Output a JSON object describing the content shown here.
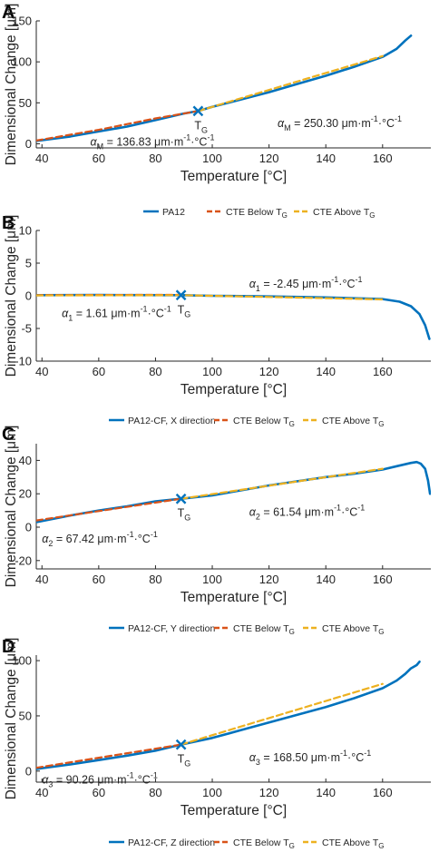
{
  "colors": {
    "measured": "#0072bd",
    "below": "#d95319",
    "above": "#edb120",
    "axis": "#262626"
  },
  "chart_data": [
    {
      "panel": "A",
      "type": "line",
      "xlabel": "Temperature [°C]",
      "ylabel": "Dimensional Change [μm]",
      "xlim": [
        38,
        177
      ],
      "ylim": [
        -5,
        150
      ],
      "xticks": [
        40,
        60,
        80,
        100,
        120,
        140,
        160
      ],
      "yticks": [
        0,
        50,
        100,
        150
      ],
      "series": [
        {
          "name": "PA12",
          "style": "solid",
          "color": "#0072bd",
          "points": [
            [
              38,
              3.5
            ],
            [
              50,
              9
            ],
            [
              60,
              15
            ],
            [
              70,
              21
            ],
            [
              80,
              29
            ],
            [
              90,
              37
            ],
            [
              95,
              40
            ],
            [
              100,
              45
            ],
            [
              110,
              54
            ],
            [
              120,
              63
            ],
            [
              130,
              73
            ],
            [
              140,
              83
            ],
            [
              150,
              94
            ],
            [
              160,
              106
            ],
            [
              165,
              116
            ],
            [
              168,
              126
            ],
            [
              170,
              132
            ]
          ]
        },
        {
          "name": "CTE Below TG",
          "style": "dashed",
          "color": "#d95319",
          "points": [
            [
              38,
              4
            ],
            [
              60,
              17
            ],
            [
              80,
              31
            ],
            [
              95,
              40
            ]
          ]
        },
        {
          "name": "CTE Above TG",
          "style": "dashed",
          "color": "#edb120",
          "points": [
            [
              95,
              40
            ],
            [
              160,
              107
            ]
          ]
        }
      ],
      "marker": {
        "x": 95,
        "y": 40,
        "label": "T",
        "sub": "G"
      },
      "annotations": [
        {
          "sym": "α",
          "sub": "M",
          "text": " = 250.30 μm·m",
          "sup": "-1",
          "text2": "·°C",
          "sup2": "-1",
          "x": 123,
          "y": 25
        },
        {
          "sym": "α",
          "sub": "M",
          "text": " = 136.83 μm·m",
          "sup": "-1",
          "text2": "·°C",
          "sup2": "-1",
          "x": 57,
          "y": 2
        }
      ],
      "legend": [
        {
          "label": "PA12",
          "sub": "",
          "style": "solid",
          "color": "#0072bd"
        },
        {
          "label": "CTE Below T",
          "sub": "G",
          "style": "dashed",
          "color": "#d95319"
        },
        {
          "label": "CTE Above T",
          "sub": "G",
          "style": "dashed",
          "color": "#edb120"
        }
      ]
    },
    {
      "panel": "B",
      "type": "line",
      "xlabel": "Temperature [°C]",
      "ylabel": "Dimensional Change [μm]",
      "xlim": [
        38,
        177
      ],
      "ylim": [
        -10,
        10
      ],
      "xticks": [
        40,
        60,
        80,
        100,
        120,
        140,
        160
      ],
      "yticks": [
        -10,
        -5,
        0,
        5,
        10
      ],
      "series": [
        {
          "name": "PA12-CF, X direction",
          "style": "solid",
          "color": "#0072bd",
          "points": [
            [
              38,
              0.1
            ],
            [
              60,
              0.12
            ],
            [
              89,
              0.1
            ],
            [
              100,
              0
            ],
            [
              120,
              -0.1
            ],
            [
              140,
              -0.25
            ],
            [
              160,
              -0.5
            ],
            [
              166,
              -0.9
            ],
            [
              170,
              -1.6
            ],
            [
              173,
              -2.8
            ],
            [
              175,
              -4.5
            ],
            [
              176.5,
              -6.6
            ]
          ]
        },
        {
          "name": "CTE Below TG",
          "style": "dashed",
          "color": "#d95319",
          "points": [
            [
              38,
              0.1
            ],
            [
              89,
              0.15
            ]
          ]
        },
        {
          "name": "CTE Above TG",
          "style": "dashed",
          "color": "#edb120",
          "points": [
            [
              38,
              0.05
            ],
            [
              89,
              0.1
            ],
            [
              160,
              -0.55
            ]
          ]
        }
      ],
      "marker": {
        "x": 89,
        "y": 0.1,
        "label": "T",
        "sub": "G"
      },
      "annotations": [
        {
          "sym": "α",
          "sub": "1",
          "text": " = -2.45 μm·m",
          "sup": "-1",
          "text2": "·°C",
          "sup2": "-1",
          "x": 113,
          "y": 1.8
        },
        {
          "sym": "α",
          "sub": "1",
          "text": " = 1.61 μm·m",
          "sup": "-1",
          "text2": "·°C",
          "sup2": "-1",
          "x": 47,
          "y": -2.7
        }
      ],
      "legend": [
        {
          "label": "PA12-CF, X direction",
          "sub": "",
          "style": "solid",
          "color": "#0072bd"
        },
        {
          "label": "CTE Below T",
          "sub": "G",
          "style": "dashed",
          "color": "#d95319"
        },
        {
          "label": "CTE Above T",
          "sub": "G",
          "style": "dashed",
          "color": "#edb120"
        }
      ]
    },
    {
      "panel": "C",
      "type": "line",
      "xlabel": "Temperature [°C]",
      "ylabel": "Dimensional Change [μm]",
      "xlim": [
        38,
        177
      ],
      "ylim": [
        -25,
        50
      ],
      "xticks": [
        40,
        60,
        80,
        100,
        120,
        140,
        160
      ],
      "yticks": [
        -20,
        0,
        20,
        40
      ],
      "series": [
        {
          "name": "PA12-CF, Y direction",
          "style": "solid",
          "color": "#0072bd",
          "points": [
            [
              38,
              3
            ],
            [
              50,
              7
            ],
            [
              60,
              10
            ],
            [
              70,
              12.5
            ],
            [
              80,
              15.5
            ],
            [
              89,
              17
            ],
            [
              100,
              19
            ],
            [
              110,
              22
            ],
            [
              120,
              25
            ],
            [
              130,
              27.5
            ],
            [
              140,
              30
            ],
            [
              150,
              32
            ],
            [
              160,
              34.5
            ],
            [
              165,
              36.5
            ],
            [
              170,
              38.5
            ],
            [
              172,
              39
            ],
            [
              173.5,
              38
            ],
            [
              175,
              35
            ],
            [
              176,
              28
            ],
            [
              176.7,
              20
            ]
          ]
        },
        {
          "name": "CTE Below TG",
          "style": "dashed",
          "color": "#d95319",
          "points": [
            [
              38,
              4
            ],
            [
              89,
              17
            ]
          ]
        },
        {
          "name": "CTE Above TG",
          "style": "dashed",
          "color": "#edb120",
          "points": [
            [
              89,
              17
            ],
            [
              160,
              35
            ]
          ]
        }
      ],
      "marker": {
        "x": 89,
        "y": 17,
        "label": "T",
        "sub": "G"
      },
      "annotations": [
        {
          "sym": "α",
          "sub": "2",
          "text": " = 61.54 μm·m",
          "sup": "-1",
          "text2": "·°C",
          "sup2": "-1",
          "x": 113,
          "y": 9
        },
        {
          "sym": "α",
          "sub": "2",
          "text": " = 67.42 μm·m",
          "sup": "-1",
          "text2": "·°C",
          "sup2": "-1",
          "x": 40,
          "y": -7
        }
      ],
      "legend": [
        {
          "label": "PA12-CF, Y direction",
          "sub": "",
          "style": "solid",
          "color": "#0072bd"
        },
        {
          "label": "CTE Below T",
          "sub": "G",
          "style": "dashed",
          "color": "#d95319"
        },
        {
          "label": "CTE Above T",
          "sub": "G",
          "style": "dashed",
          "color": "#edb120"
        }
      ]
    },
    {
      "panel": "D",
      "type": "line",
      "xlabel": "Temperature [°C]",
      "ylabel": "Dimensional Change [μm]",
      "xlim": [
        38,
        177
      ],
      "ylim": [
        -10,
        105
      ],
      "xticks": [
        40,
        60,
        80,
        100,
        120,
        140,
        160
      ],
      "yticks": [
        0,
        50,
        100
      ],
      "series": [
        {
          "name": "PA12-CF, Z direction",
          "style": "solid",
          "color": "#0072bd",
          "points": [
            [
              38,
              2
            ],
            [
              50,
              6
            ],
            [
              60,
              10
            ],
            [
              70,
              14
            ],
            [
              80,
              18.5
            ],
            [
              89,
              24
            ],
            [
              100,
              30
            ],
            [
              110,
              37
            ],
            [
              120,
              44
            ],
            [
              130,
              51
            ],
            [
              140,
              58
            ],
            [
              150,
              66
            ],
            [
              160,
              75
            ],
            [
              165,
              82
            ],
            [
              168,
              88
            ],
            [
              170,
              93
            ],
            [
              172,
              96
            ],
            [
              173,
              99
            ]
          ]
        },
        {
          "name": "CTE Below TG",
          "style": "dashed",
          "color": "#d95319",
          "points": [
            [
              38,
              3
            ],
            [
              89,
              24
            ]
          ]
        },
        {
          "name": "CTE Above TG",
          "style": "dashed",
          "color": "#edb120",
          "points": [
            [
              89,
              24
            ],
            [
              160,
              79
            ]
          ]
        }
      ],
      "marker": {
        "x": 89,
        "y": 24,
        "label": "T",
        "sub": "G"
      },
      "annotations": [
        {
          "sym": "α",
          "sub": "3",
          "text": " = 168.50 μm·m",
          "sup": "-1",
          "text2": "·°C",
          "sup2": "-1",
          "x": 113,
          "y": 12
        },
        {
          "sym": "α",
          "sub": "3",
          "text": " = 90.26 μm·m",
          "sup": "-1",
          "text2": "·°C",
          "sup2": "-1",
          "x": 40,
          "y": -8
        }
      ],
      "legend": [
        {
          "label": "PA12-CF, Z direction",
          "sub": "",
          "style": "solid",
          "color": "#0072bd"
        },
        {
          "label": "CTE Below T",
          "sub": "G",
          "style": "dashed",
          "color": "#d95319"
        },
        {
          "label": "CTE Above T",
          "sub": "G",
          "style": "dashed",
          "color": "#edb120"
        }
      ]
    }
  ]
}
